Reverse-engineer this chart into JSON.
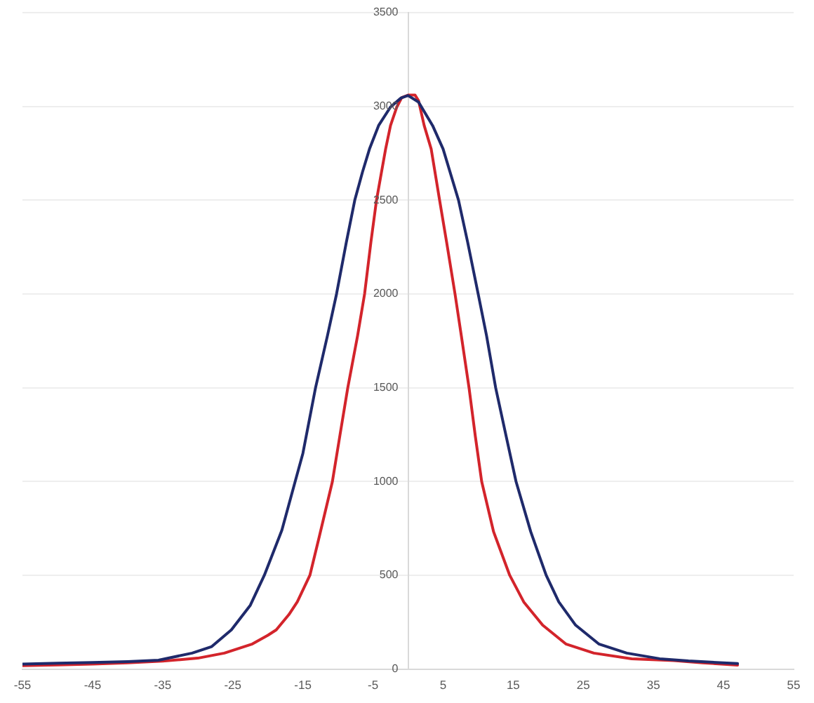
{
  "chart_data": {
    "type": "line",
    "series": [
      {
        "color": "#1f2a6b",
        "x": [
          -55,
          -50,
          -45,
          -40,
          -35.6,
          -30.8,
          -28,
          -25.2,
          -22.5,
          -20.5,
          -18,
          -16.1,
          -15,
          -13.2,
          -11.5,
          -10.2,
          -8.8,
          -7.6,
          -6.5,
          -5.5,
          -4.2,
          -2.5,
          -1,
          0,
          1.5,
          3.5,
          5,
          7.2,
          8.5,
          10,
          11.2,
          12.5,
          14,
          15.4,
          17.5,
          19.7,
          21.5,
          23.9,
          27.2,
          31.2,
          35.9,
          40,
          47
        ],
        "values": [
          27,
          31,
          35,
          40,
          47,
          85,
          120,
          209,
          340,
          500,
          740,
          1000,
          1150,
          1499,
          1777,
          2000,
          2276,
          2500,
          2650,
          2773,
          2898,
          2997,
          3045,
          3058,
          3023,
          2898,
          2773,
          2500,
          2276,
          2000,
          1777,
          1499,
          1240,
          1000,
          732,
          500,
          358,
          234,
          134,
          85,
          55,
          43,
          29
        ]
      },
      {
        "color": "#d3242b",
        "x": [
          -55,
          -50,
          -45,
          -40,
          -35,
          -30,
          -26.2,
          -22.2,
          -20,
          -18.8,
          -17,
          -15.8,
          -14,
          -12.7,
          -10.8,
          -9.7,
          -8.6,
          -7.2,
          -6.2,
          -5.3,
          -4.5,
          -3.2,
          -2.5,
          -1.6,
          -0.9,
          0,
          1,
          1.5,
          2.3,
          3.3,
          4.5,
          5.5,
          6.7,
          7.6,
          8.7,
          9.6,
          10.5,
          12.2,
          14.5,
          16.5,
          19.2,
          22.5,
          26.5,
          31.9,
          37.9,
          42,
          47
        ],
        "values": [
          18,
          22,
          27,
          33,
          42,
          58,
          85,
          134,
          180,
          209,
          290,
          358,
          500,
          700,
          998,
          1250,
          1499,
          1777,
          2000,
          2276,
          2500,
          2773,
          2898,
          2997,
          3047,
          3060,
          3060,
          3030,
          2898,
          2773,
          2500,
          2276,
          2000,
          1777,
          1499,
          1240,
          1000,
          732,
          500,
          358,
          234,
          134,
          85,
          55,
          45,
          33,
          21
        ]
      }
    ],
    "xlim": [
      -55,
      55
    ],
    "xticks": [
      -55,
      -45,
      -35,
      -25,
      -15,
      -5,
      5,
      15,
      25,
      35,
      45,
      55
    ],
    "ylim": [
      0,
      3500
    ],
    "yticks": [
      0,
      500,
      1000,
      1500,
      2000,
      2500,
      3000,
      3500
    ],
    "grid": "y"
  }
}
